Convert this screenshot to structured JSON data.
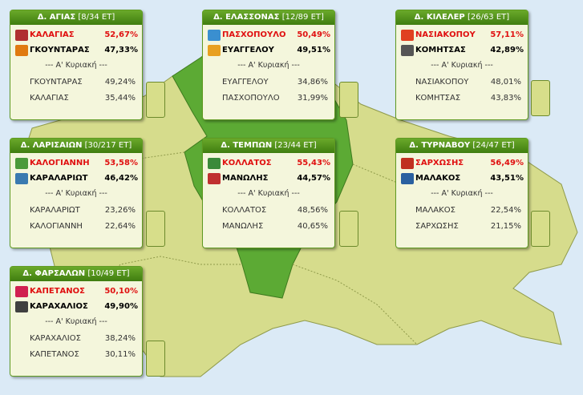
{
  "municipalities": [
    {
      "title": "Δ. ΑΓΙΑΣ",
      "count": "[8/34 ET]",
      "candidates": [
        {
          "name": "ΚΑΛΑΓΙΑΣ",
          "percent": "52,67%"
        },
        {
          "name": "ΓΚΟΥΝΤΑΡΑΣ",
          "percent": "47,33%"
        }
      ],
      "first_round_label": "--- Α' Κυριακή ---",
      "first_round": [
        {
          "name": "ΓΚΟΥΝΤΑΡΑΣ",
          "percent": "49,24%"
        },
        {
          "name": "ΚΑΛΑΓΙΑΣ",
          "percent": "35,44%"
        }
      ]
    },
    {
      "title": "Δ. ΕΛΑΣΣΟΝΑΣ",
      "count": "[12/89 ET]",
      "candidates": [
        {
          "name": "ΠΑΣΧΟΠΟΥΛΟ",
          "percent": "50,49%"
        },
        {
          "name": "ΕΥΑΓΓΕΛΟΥ",
          "percent": "49,51%"
        }
      ],
      "first_round_label": "--- Α' Κυριακή ---",
      "first_round": [
        {
          "name": "ΕΥΑΓΓΕΛΟΥ",
          "percent": "34,86%"
        },
        {
          "name": "ΠΑΣΧΟΠΟΥΛΟ",
          "percent": "31,99%"
        }
      ]
    },
    {
      "title": "Δ. ΚΙΛΕΛΕΡ",
      "count": "[26/63 ET]",
      "candidates": [
        {
          "name": "ΝΑΣΙΑΚΟΠΟΥ",
          "percent": "57,11%"
        },
        {
          "name": "ΚΟΜΗΤΣΑΣ",
          "percent": "42,89%"
        }
      ],
      "first_round_label": "--- Α' Κυριακή ---",
      "first_round": [
        {
          "name": "ΝΑΣΙΑΚΟΠΟΥ",
          "percent": "48,01%"
        },
        {
          "name": "ΚΟΜΗΤΣΑΣ",
          "percent": "43,83%"
        }
      ]
    },
    {
      "title": "Δ. ΛΑΡΙΣΑΙΩΝ",
      "count": "[30/217 ET]",
      "candidates": [
        {
          "name": "ΚΑΛΟΓΙΑΝΝΗ",
          "percent": "53,58%"
        },
        {
          "name": "ΚΑΡΑΛΑΡΙΩΤ",
          "percent": "46,42%"
        }
      ],
      "first_round_label": "--- Α' Κυριακή ---",
      "first_round": [
        {
          "name": "ΚΑΡΑΛΑΡΙΩΤ",
          "percent": "23,26%"
        },
        {
          "name": "ΚΑΛΟΓΙΑΝΝΗ",
          "percent": "22,64%"
        }
      ]
    },
    {
      "title": "Δ. ΤΕΜΠΩΝ",
      "count": "[23/44 ET]",
      "candidates": [
        {
          "name": "ΚΟΛΛΑΤΟΣ",
          "percent": "55,43%"
        },
        {
          "name": "ΜΑΝΩΛΗΣ",
          "percent": "44,57%"
        }
      ],
      "first_round_label": "--- Α' Κυριακή ---",
      "first_round": [
        {
          "name": "ΚΟΛΛΑΤΟΣ",
          "percent": "48,56%"
        },
        {
          "name": "ΜΑΝΩΛΗΣ",
          "percent": "40,65%"
        }
      ]
    },
    {
      "title": "Δ. ΤΥΡΝΑΒΟΥ",
      "count": "[24/47 ET]",
      "candidates": [
        {
          "name": "ΣΑΡΧΩΣΗΣ",
          "percent": "56,49%"
        },
        {
          "name": "ΜΑΛΑΚΟΣ",
          "percent": "43,51%"
        }
      ],
      "first_round_label": "--- Α' Κυριακή ---",
      "first_round": [
        {
          "name": "ΜΑΛΑΚΟΣ",
          "percent": "22,54%"
        },
        {
          "name": "ΣΑΡΧΩΣΗΣ",
          "percent": "21,15%"
        }
      ]
    },
    {
      "title": "Δ. ΦΑΡΣΑΛΩΝ",
      "count": "[10/49 ET]",
      "candidates": [
        {
          "name": "ΚΑΠΕΤΑΝΟΣ",
          "percent": "50,10%"
        },
        {
          "name": "ΚΑΡΑΧΑΛΙΟΣ",
          "percent": "49,90%"
        }
      ],
      "first_round_label": "--- Α' Κυριακή ---",
      "first_round": [
        {
          "name": "ΚΑΡΑΧΑΛΙΟΣ",
          "percent": "38,24%"
        },
        {
          "name": "ΚΑΠΕΤΑΝΟΣ",
          "percent": "30,11%"
        }
      ]
    }
  ]
}
